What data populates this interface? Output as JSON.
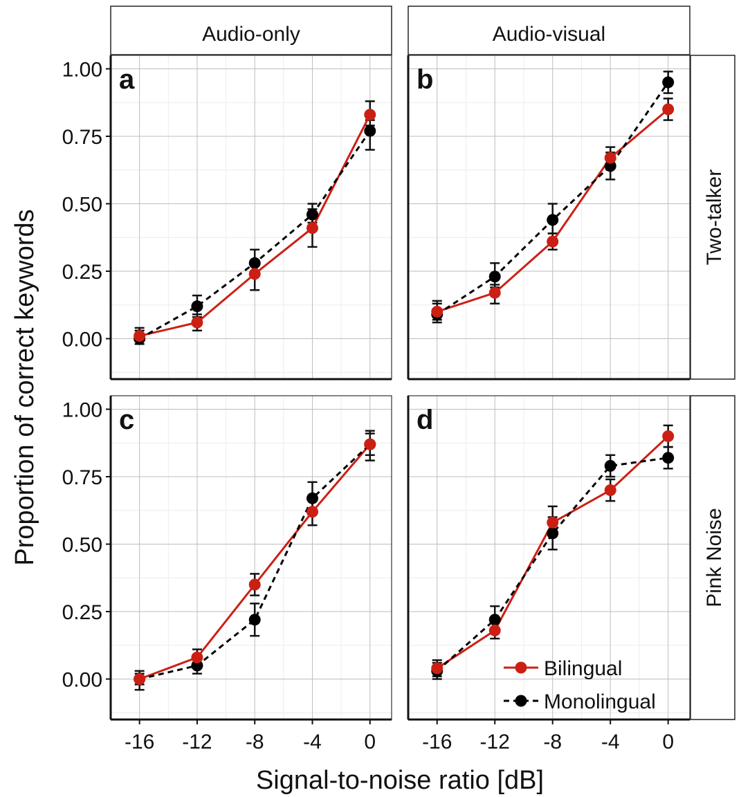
{
  "colors": {
    "Bilingual": "#cc1f14",
    "Monolingual": "#000000",
    "grid_major": "#bdbdbd",
    "grid_minor": "#ececec"
  },
  "column_labels": [
    "Audio-only",
    "Audio-visual"
  ],
  "row_labels": [
    "Two-talker",
    "Pink Noise"
  ],
  "x_label": "Signal-to-noise ratio [dB]",
  "y_label": "Proportion of correct keywords",
  "x_ticks": [
    "-16",
    "-12",
    "-8",
    "-4",
    "0"
  ],
  "y_ticks": [
    "0.00",
    "0.25",
    "0.50",
    "0.75",
    "1.00"
  ],
  "legend": {
    "position": "bottom-right of panel d",
    "items": [
      "Bilingual",
      "Monolingual"
    ]
  },
  "chart_data": [
    {
      "type": "line",
      "panel": "a",
      "column": "Audio-only",
      "row": "Two-talker",
      "x": [
        -16,
        -12,
        -8,
        -4,
        0
      ],
      "xlim": [
        -18,
        1.5
      ],
      "ylim": [
        -0.15,
        1.05
      ],
      "grid": true,
      "series": [
        {
          "name": "Bilingual",
          "style": "solid",
          "values": [
            0.01,
            0.06,
            0.24,
            0.41,
            0.83
          ],
          "err_low": [
            0.0,
            0.03,
            0.18,
            0.34,
            0.79
          ],
          "err_high": [
            0.03,
            0.09,
            0.29,
            0.48,
            0.88
          ]
        },
        {
          "name": "Monolingual",
          "style": "dashed",
          "values": [
            0.0,
            0.12,
            0.28,
            0.46,
            0.77
          ],
          "err_low": [
            -0.02,
            0.08,
            0.24,
            0.43,
            0.7
          ],
          "err_high": [
            0.04,
            0.16,
            0.33,
            0.5,
            0.81
          ]
        }
      ]
    },
    {
      "type": "line",
      "panel": "b",
      "column": "Audio-visual",
      "row": "Two-talker",
      "x": [
        -16,
        -12,
        -8,
        -4,
        0
      ],
      "xlim": [
        -18,
        1.5
      ],
      "ylim": [
        -0.15,
        1.05
      ],
      "grid": true,
      "series": [
        {
          "name": "Bilingual",
          "style": "solid",
          "values": [
            0.1,
            0.17,
            0.36,
            0.67,
            0.85
          ],
          "err_low": [
            0.07,
            0.13,
            0.33,
            0.63,
            0.81
          ],
          "err_high": [
            0.13,
            0.2,
            0.39,
            0.71,
            0.89
          ]
        },
        {
          "name": "Monolingual",
          "style": "dashed",
          "values": [
            0.09,
            0.23,
            0.44,
            0.64,
            0.95
          ],
          "err_low": [
            0.06,
            0.19,
            0.39,
            0.59,
            0.91
          ],
          "err_high": [
            0.14,
            0.28,
            0.5,
            0.69,
            0.99
          ]
        }
      ]
    },
    {
      "type": "line",
      "panel": "c",
      "column": "Audio-only",
      "row": "Pink Noise",
      "x": [
        -16,
        -12,
        -8,
        -4,
        0
      ],
      "xlim": [
        -18,
        1.5
      ],
      "ylim": [
        -0.15,
        1.05
      ],
      "grid": true,
      "series": [
        {
          "name": "Bilingual",
          "style": "solid",
          "values": [
            0.0,
            0.08,
            0.35,
            0.62,
            0.87
          ],
          "err_low": [
            -0.02,
            0.05,
            0.31,
            0.57,
            0.83
          ],
          "err_high": [
            0.02,
            0.11,
            0.39,
            0.67,
            0.91
          ]
        },
        {
          "name": "Monolingual",
          "style": "dashed",
          "values": [
            0.0,
            0.05,
            0.22,
            0.67,
            0.87
          ],
          "err_low": [
            -0.04,
            0.02,
            0.16,
            0.61,
            0.81
          ],
          "err_high": [
            0.03,
            0.08,
            0.28,
            0.73,
            0.92
          ]
        }
      ]
    },
    {
      "type": "line",
      "panel": "d",
      "column": "Audio-visual",
      "row": "Pink Noise",
      "x": [
        -16,
        -12,
        -8,
        -4,
        0
      ],
      "xlim": [
        -18,
        1.5
      ],
      "ylim": [
        -0.15,
        1.05
      ],
      "grid": true,
      "series": [
        {
          "name": "Bilingual",
          "style": "solid",
          "values": [
            0.04,
            0.18,
            0.58,
            0.7,
            0.9
          ],
          "err_low": [
            0.01,
            0.15,
            0.53,
            0.66,
            0.86
          ],
          "err_high": [
            0.07,
            0.22,
            0.64,
            0.74,
            0.94
          ]
        },
        {
          "name": "Monolingual",
          "style": "dashed",
          "values": [
            0.03,
            0.22,
            0.54,
            0.79,
            0.82
          ],
          "err_low": [
            0.0,
            0.17,
            0.48,
            0.75,
            0.78
          ],
          "err_high": [
            0.06,
            0.27,
            0.6,
            0.83,
            0.86
          ]
        }
      ]
    }
  ]
}
